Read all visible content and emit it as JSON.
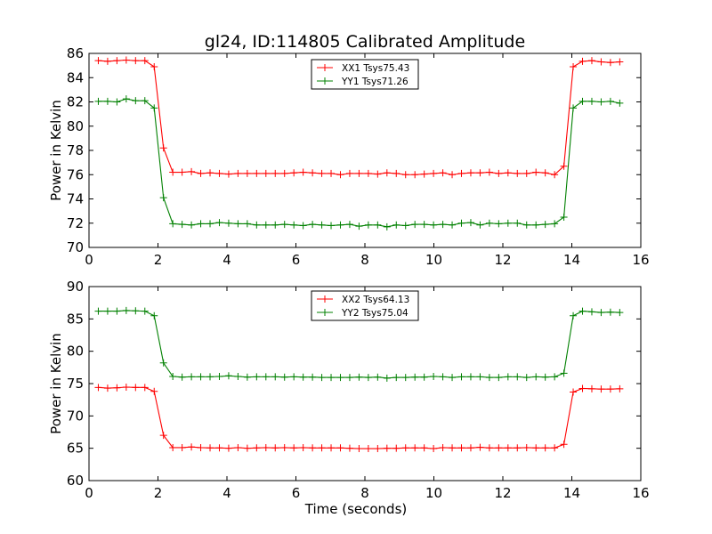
{
  "chart_data": [
    {
      "type": "line",
      "title": "gl24, ID:114805 Calibrated Amplitude",
      "xlabel": "",
      "ylabel": "Power in Kelvin",
      "xlim": [
        0,
        16
      ],
      "ylim": [
        70,
        86
      ],
      "xticks": [
        0,
        2,
        4,
        6,
        8,
        10,
        12,
        14,
        16
      ],
      "yticks": [
        70,
        72,
        74,
        76,
        78,
        80,
        82,
        84,
        86
      ],
      "grid": false,
      "legend": "top-center",
      "x": [
        0.27,
        0.54,
        0.81,
        1.08,
        1.35,
        1.62,
        1.89,
        2.16,
        2.43,
        2.7,
        2.97,
        3.24,
        3.51,
        3.78,
        4.05,
        4.32,
        4.59,
        4.86,
        5.13,
        5.4,
        5.67,
        5.94,
        6.21,
        6.48,
        6.75,
        7.02,
        7.29,
        7.56,
        7.83,
        8.1,
        8.37,
        8.64,
        8.91,
        9.18,
        9.45,
        9.72,
        9.99,
        10.26,
        10.53,
        10.8,
        11.07,
        11.34,
        11.61,
        11.88,
        12.15,
        12.42,
        12.69,
        12.96,
        13.23,
        13.5,
        13.77,
        14.04,
        14.31,
        14.58,
        14.85,
        15.12,
        15.39
      ],
      "series": [
        {
          "name": "XX1 Tsys75.43",
          "color": "#ff0000",
          "values": [
            85.4,
            85.35,
            85.4,
            85.45,
            85.4,
            85.4,
            84.9,
            78.2,
            76.2,
            76.2,
            76.25,
            76.1,
            76.15,
            76.1,
            76.05,
            76.1,
            76.1,
            76.1,
            76.1,
            76.1,
            76.1,
            76.15,
            76.2,
            76.15,
            76.1,
            76.1,
            76.0,
            76.1,
            76.1,
            76.1,
            76.05,
            76.15,
            76.1,
            76.0,
            76.0,
            76.05,
            76.1,
            76.15,
            76.0,
            76.1,
            76.15,
            76.15,
            76.2,
            76.1,
            76.15,
            76.1,
            76.1,
            76.2,
            76.15,
            76.0,
            76.7,
            84.9,
            85.35,
            85.4,
            85.3,
            85.25,
            85.3
          ]
        },
        {
          "name": "YY1 Tsys71.26",
          "color": "#008000",
          "values": [
            82.05,
            82.05,
            82.0,
            82.25,
            82.1,
            82.1,
            81.5,
            74.1,
            71.95,
            71.9,
            71.85,
            71.95,
            71.95,
            72.05,
            72.0,
            71.95,
            71.95,
            71.85,
            71.85,
            71.85,
            71.9,
            71.85,
            71.8,
            71.9,
            71.85,
            71.8,
            71.85,
            71.9,
            71.75,
            71.85,
            71.85,
            71.7,
            71.85,
            71.8,
            71.9,
            71.9,
            71.85,
            71.9,
            71.85,
            72.0,
            72.05,
            71.85,
            72.0,
            71.95,
            72.0,
            72.0,
            71.85,
            71.85,
            71.9,
            71.95,
            72.5,
            81.5,
            82.05,
            82.05,
            82.0,
            82.05,
            81.9
          ]
        }
      ]
    },
    {
      "type": "line",
      "title": "",
      "xlabel": "Time (seconds)",
      "ylabel": "Power in Kelvin",
      "xlim": [
        0,
        16
      ],
      "ylim": [
        60,
        90
      ],
      "xticks": [
        0,
        2,
        4,
        6,
        8,
        10,
        12,
        14,
        16
      ],
      "yticks": [
        60,
        65,
        70,
        75,
        80,
        85,
        90
      ],
      "grid": false,
      "legend": "top-center",
      "x": [
        0.27,
        0.54,
        0.81,
        1.08,
        1.35,
        1.62,
        1.89,
        2.16,
        2.43,
        2.7,
        2.97,
        3.24,
        3.51,
        3.78,
        4.05,
        4.32,
        4.59,
        4.86,
        5.13,
        5.4,
        5.67,
        5.94,
        6.21,
        6.48,
        6.75,
        7.02,
        7.29,
        7.56,
        7.83,
        8.1,
        8.37,
        8.64,
        8.91,
        9.18,
        9.45,
        9.72,
        9.99,
        10.26,
        10.53,
        10.8,
        11.07,
        11.34,
        11.61,
        11.88,
        12.15,
        12.42,
        12.69,
        12.96,
        13.23,
        13.5,
        13.77,
        14.04,
        14.31,
        14.58,
        14.85,
        15.12,
        15.39
      ],
      "series": [
        {
          "name": "XX2 Tsys64.13",
          "color": "#ff0000",
          "values": [
            74.4,
            74.3,
            74.35,
            74.45,
            74.4,
            74.4,
            73.8,
            67.0,
            65.1,
            65.1,
            65.2,
            65.1,
            65.05,
            65.05,
            65.0,
            65.1,
            65.0,
            65.05,
            65.1,
            65.05,
            65.1,
            65.05,
            65.1,
            65.05,
            65.05,
            65.05,
            65.05,
            65.0,
            64.95,
            64.95,
            64.95,
            65.0,
            65.0,
            65.05,
            65.05,
            65.05,
            64.95,
            65.1,
            65.05,
            65.05,
            65.05,
            65.15,
            65.05,
            65.05,
            65.05,
            65.05,
            65.1,
            65.05,
            65.05,
            65.05,
            65.6,
            73.7,
            74.25,
            74.2,
            74.15,
            74.15,
            74.2
          ]
        },
        {
          "name": "YY2 Tsys75.04",
          "color": "#008000",
          "values": [
            86.2,
            86.2,
            86.2,
            86.3,
            86.25,
            86.2,
            85.5,
            78.2,
            76.1,
            76.0,
            76.05,
            76.05,
            76.05,
            76.1,
            76.2,
            76.1,
            76.0,
            76.05,
            76.05,
            76.05,
            76.0,
            76.05,
            76.0,
            76.0,
            75.95,
            75.95,
            75.95,
            75.95,
            76.0,
            75.95,
            76.0,
            75.85,
            75.95,
            75.95,
            76.0,
            76.0,
            76.1,
            76.05,
            75.95,
            76.05,
            76.05,
            76.05,
            75.95,
            75.95,
            76.05,
            76.05,
            75.95,
            76.05,
            76.0,
            76.05,
            76.6,
            85.5,
            86.2,
            86.1,
            86.0,
            86.05,
            86.0
          ]
        }
      ]
    }
  ]
}
